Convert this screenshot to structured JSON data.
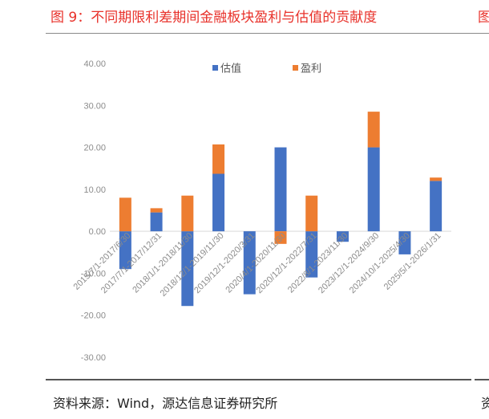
{
  "figure": {
    "title": "图 9：不同期限利差期间金融板块盈利与估值的贡献度",
    "right_fragment": "图",
    "source": "资料来源：Wind，源达信息证券研究所",
    "source_fragment": "资"
  },
  "chart_data": {
    "type": "bar",
    "stacked": true,
    "categories": [
      "2015/7/1-2017/6/30",
      "2017/7/1-2017/12/31",
      "2018/1/1-2018/11/30",
      "2018/12/1-2019/11/30",
      "2019/12/1-2020/3/31",
      "2020/4/1-2020/11/30",
      "2020/12/1-2022/7/31",
      "2022/8/1-2023/11/30",
      "2023/12/1-2024/9/30",
      "2024/10/1-2025/4/30",
      "2025/5/1-2026/1/31"
    ],
    "series": [
      {
        "name": "估值",
        "color": "#4472c4",
        "values": [
          -9.0,
          4.5,
          -17.8,
          13.7,
          -15.0,
          20.0,
          -11.0,
          -2.5,
          20.0,
          -5.5,
          12.0
        ]
      },
      {
        "name": "盈利",
        "color": "#ed7d31",
        "values": [
          8.0,
          1.0,
          8.5,
          7.0,
          0.0,
          -3.0,
          8.5,
          0.0,
          8.5,
          0.0,
          0.8
        ]
      }
    ],
    "yticks": [
      "40.00",
      "30.00",
      "20.00",
      "10.00",
      "0.00",
      "-10.00",
      "-20.00",
      "-30.00"
    ],
    "ylim": [
      -30,
      40
    ],
    "legend_position": "top",
    "grid": false
  }
}
